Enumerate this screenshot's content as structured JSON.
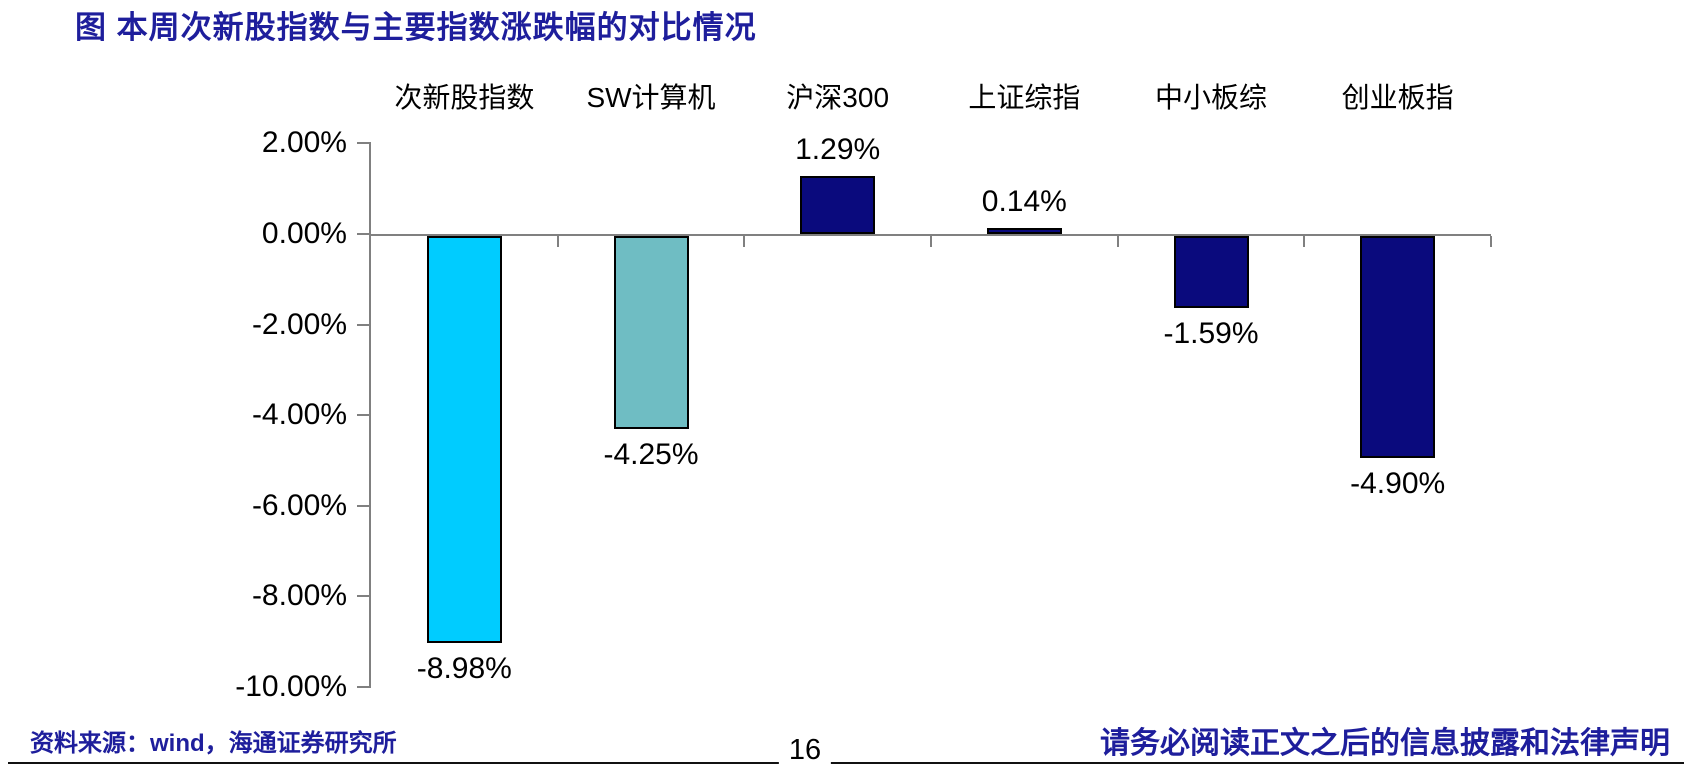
{
  "page": {
    "title": "图 本周次新股指数与主要指数涨跌幅的对比情况",
    "source_note": "资料来源：wind，海通证券研究所",
    "page_number": "16",
    "disclaimer": "请务必阅读正文之后的信息披露和法律声明"
  },
  "chart_data": {
    "type": "bar",
    "title": "本周次新股指数与主要指数涨跌幅的对比情况",
    "categories": [
      "次新股指数",
      "SW计算机",
      "沪深300",
      "上证综指",
      "中小板综",
      "创业板指"
    ],
    "values": [
      -8.98,
      -4.25,
      1.29,
      0.14,
      -1.59,
      -4.9
    ],
    "value_labels": [
      "-8.98%",
      "-4.25%",
      "1.29%",
      "0.14%",
      "-1.59%",
      "-4.90%"
    ],
    "bar_colors": [
      "#00CCFF",
      "#6FBDC3",
      "#0A0A7D",
      "#0A0A7D",
      "#0A0A7D",
      "#0A0A7D"
    ],
    "bar_border_color": "#000000",
    "axis_color": "#808080",
    "ylim": [
      -10,
      2
    ],
    "ytick_values": [
      2,
      0,
      -2,
      -4,
      -6,
      -8,
      -10
    ],
    "ytick_labels": [
      "2.00%",
      "0.00%",
      "-2.00%",
      "-4.00%",
      "-6.00%",
      "-8.00%",
      "-10.00%"
    ],
    "xlabel": "",
    "ylabel": "",
    "grid": false,
    "legend": "none",
    "category_labels_position": "top"
  }
}
